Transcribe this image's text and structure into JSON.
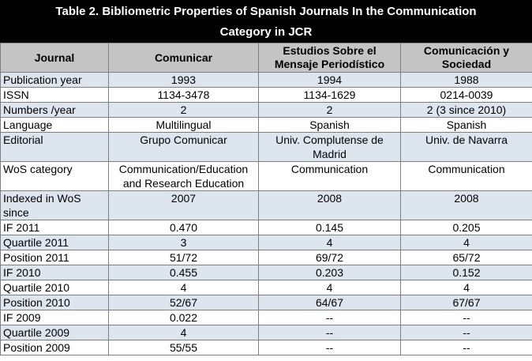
{
  "table": {
    "title": "Table 2. Bibliometric Properties of Spanish Journals In the Communication Category in JCR",
    "headers": [
      "Journal",
      "Comunicar",
      "Estudios Sobre el Mensaje Periodístico",
      "Comunicación y Sociedad"
    ],
    "rows": [
      [
        "Publication year",
        "1993",
        "1994",
        "1988"
      ],
      [
        "ISSN",
        "1134-3478",
        "1134-1629",
        "0214-0039"
      ],
      [
        "Numbers /year",
        "2",
        "2",
        "2 (3 since 2010)"
      ],
      [
        "Language",
        "Multilingual",
        "Spanish",
        "Spanish"
      ],
      [
        "Editorial",
        "Grupo Comunicar",
        "Univ. Complutense de Madrid",
        "Univ. de Navarra"
      ],
      [
        "WoS category",
        "Communication/Education and Research Education",
        "Communication",
        "Communication"
      ],
      [
        "Indexed in WoS since",
        "2007",
        "2008",
        "2008"
      ],
      [
        "IF 2011",
        "0.470",
        "0.145",
        "0.205"
      ],
      [
        "Quartile 2011",
        "3",
        "4",
        "4"
      ],
      [
        "Position 2011",
        "51/72",
        "69/72",
        "65/72"
      ],
      [
        "IF 2010",
        "0.455",
        "0.203",
        "0.152"
      ],
      [
        "Quartile 2010",
        "4",
        "4",
        "4"
      ],
      [
        "Position 2010",
        "52/67",
        "64/67",
        "67/67"
      ],
      [
        "IF 2009",
        "0.022",
        "--",
        "--"
      ],
      [
        "Quartile 2009",
        "4",
        "--",
        "--"
      ],
      [
        "Position 2009",
        "55/55",
        "--",
        "--"
      ]
    ]
  }
}
